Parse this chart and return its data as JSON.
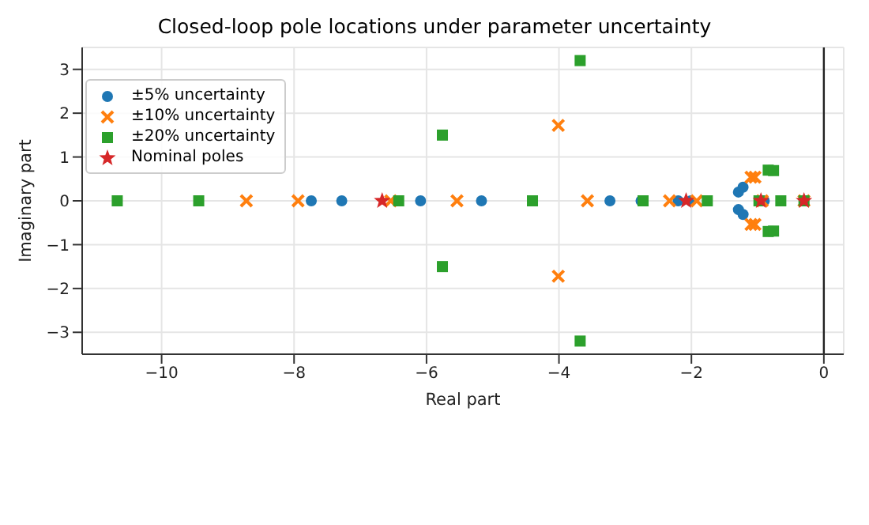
{
  "chart_data": {
    "type": "scatter",
    "title": "Closed-loop pole locations under parameter uncertainty",
    "xlabel": "Real part",
    "ylabel": "Imaginary part",
    "xlim": [
      -11.2,
      0.3
    ],
    "xticks": [
      -10,
      -8,
      -6,
      -4,
      -2,
      0
    ],
    "ylim": [
      -3.5,
      3.5
    ],
    "yticks": [
      -3,
      -2,
      -1,
      0,
      1,
      2,
      3
    ],
    "grid": true,
    "legend": "top left",
    "ref_lines": [
      {
        "axis": "x",
        "value": 0,
        "color": "#222222"
      }
    ],
    "series": [
      {
        "name": "±5% uncertainty",
        "color": "#1f77b4",
        "marker": "circle",
        "x": [
          -7.74,
          -7.28,
          -6.09,
          -5.17,
          -3.23,
          -2.76,
          -2.2,
          -2.01,
          -1.29,
          -1.22,
          -1.29,
          -1.22,
          -0.9
        ],
        "values": [
          0,
          0,
          0,
          0,
          0,
          0,
          0,
          0,
          0.2,
          0.31,
          -0.2,
          -0.31,
          0
        ]
      },
      {
        "name": "±10% uncertainty",
        "color": "#ff7f0e",
        "marker": "cross",
        "x": [
          -8.72,
          -7.94,
          -6.54,
          -5.54,
          -3.57,
          -2.33,
          -1.92,
          -4.01,
          -4.01,
          -1.1,
          -1.1,
          -1.04,
          -1.04,
          -0.93,
          -0.3
        ],
        "values": [
          0,
          0,
          0,
          0,
          0,
          0,
          0,
          1.72,
          -1.72,
          0.54,
          -0.54,
          0.54,
          -0.54,
          0,
          0
        ]
      },
      {
        "name": "±20% uncertainty",
        "color": "#2ca02c",
        "marker": "square",
        "x": [
          -10.67,
          -9.44,
          -6.42,
          -5.76,
          -5.76,
          -4.4,
          -3.68,
          -3.68,
          -2.73,
          -1.76,
          -0.84,
          -0.84,
          -0.76,
          -0.76,
          -0.98,
          -0.65,
          -0.3
        ],
        "values": [
          0,
          0,
          0,
          1.5,
          -1.5,
          0,
          3.2,
          -3.2,
          0,
          0,
          0.7,
          -0.7,
          0.69,
          -0.69,
          0,
          0,
          0
        ]
      },
      {
        "name": "Nominal poles",
        "color": "#d62728",
        "marker": "star",
        "x": [
          -6.67,
          -2.08,
          -0.95,
          -0.3
        ],
        "values": [
          0,
          0,
          0,
          0
        ]
      }
    ]
  }
}
